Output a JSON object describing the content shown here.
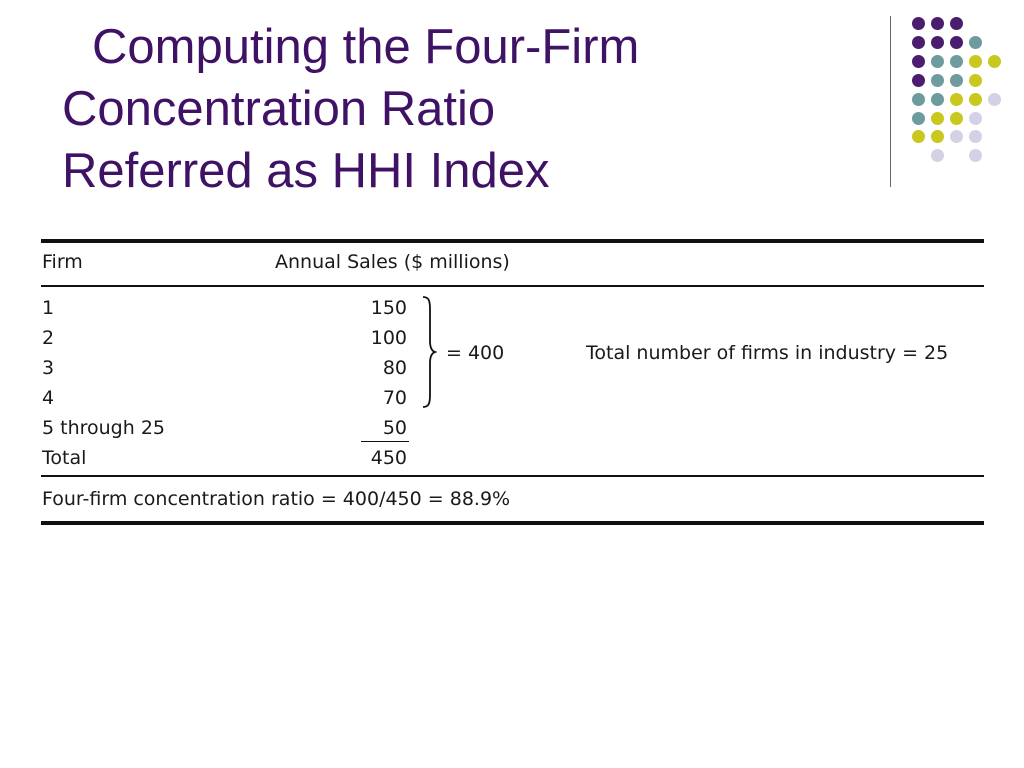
{
  "slide": {
    "title_lines": [
      "Computing the Four-Firm",
      "Concentration Ratio",
      "Referred as HHI Index"
    ]
  },
  "colors": {
    "title": "#3f1266",
    "dot_purple": "#4a1d6e",
    "dot_teal": "#6e9b9e",
    "dot_yellow": "#c8c81e",
    "dot_lavender": "#d2d2e4"
  },
  "table": {
    "headers": {
      "firm": "Firm",
      "sales": "Annual Sales ($ millions)"
    },
    "rows": [
      {
        "firm": "1",
        "sales": "150"
      },
      {
        "firm": "2",
        "sales": "100"
      },
      {
        "firm": "3",
        "sales": "80"
      },
      {
        "firm": "4",
        "sales": "70"
      },
      {
        "firm": "5 through 25",
        "sales": "50"
      }
    ],
    "total": {
      "label": "Total",
      "value": "450"
    },
    "bracket_sum": "= 400",
    "total_firms_note": "Total number of firms in industry = 25",
    "ratio_formula": "Four-firm concentration ratio = 400/450 = 88.9%"
  }
}
